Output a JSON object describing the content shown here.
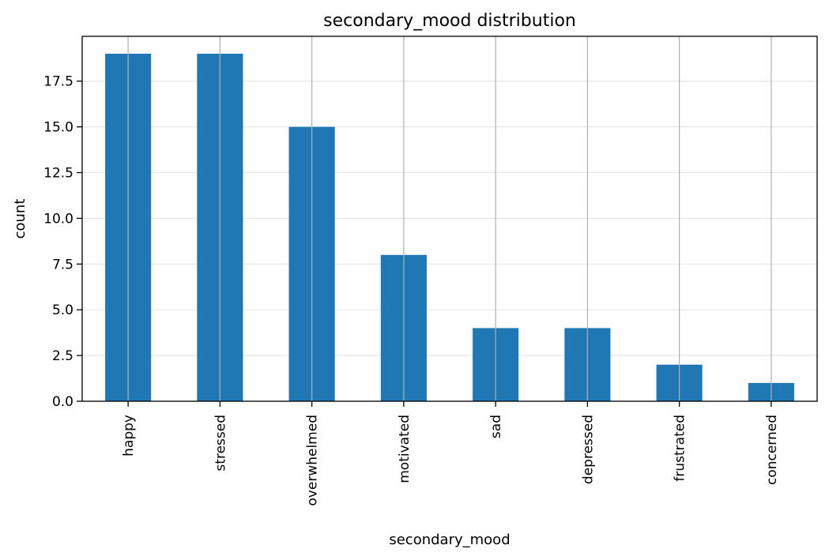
{
  "chart_data": {
    "type": "bar",
    "title": "secondary_mood distribution",
    "xlabel": "secondary_mood",
    "ylabel": "count",
    "categories": [
      "happy",
      "stressed",
      "overwhelmed",
      "motivated",
      "sad",
      "depressed",
      "frustrated",
      "concerned"
    ],
    "values": [
      19,
      19,
      15,
      8,
      4,
      4,
      2,
      1
    ],
    "ylim": [
      0,
      19.95
    ],
    "yticks": [
      0.0,
      2.5,
      5.0,
      7.5,
      10.0,
      12.5,
      15.0,
      17.5
    ],
    "ytick_labels": [
      "0.0",
      "2.5",
      "5.0",
      "7.5",
      "10.0",
      "12.5",
      "15.0",
      "17.5"
    ],
    "grid": {
      "y": true,
      "x": true
    },
    "bar_color": "#1f77b4"
  }
}
